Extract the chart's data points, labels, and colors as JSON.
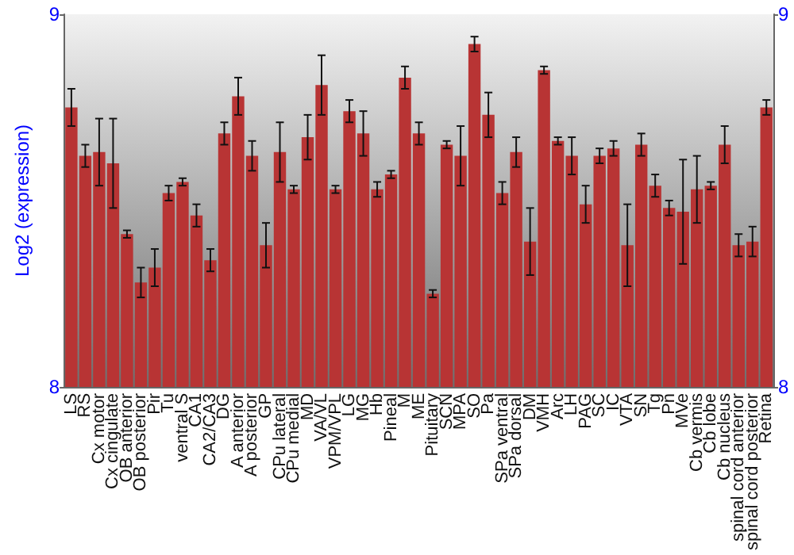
{
  "chart_data": {
    "type": "bar",
    "ylabel": "Log2 (expression)",
    "categories": [
      "LS",
      "RS",
      "Cx motor",
      "Cx cingulate",
      "OB anterior",
      "OB posterior",
      "Pir",
      "Tu",
      "ventral S",
      "CA1",
      "CA2/CA3",
      "DG",
      "A anterior",
      "A posterior",
      "GP",
      "CPu lateral",
      "CPu medial",
      "MD",
      "VA/VL",
      "VPM/VPL",
      "LG",
      "MG",
      "Hb",
      "Pineal",
      "M",
      "ME",
      "Pituitary",
      "SCN",
      "MPA",
      "SO",
      "Pa",
      "SPa ventral",
      "SPa dorsal",
      "DM",
      "VMH",
      "Arc",
      "LH",
      "PAG",
      "SC",
      "IC",
      "VTA",
      "SN",
      "Tg",
      "Pn",
      "MVe",
      "Cb vermis",
      "Cb lobe",
      "Cb nucleus",
      "spinal cord anterior",
      "spinal cord posterior",
      "Retina"
    ],
    "series": [
      {
        "color": "#b83434",
        "values": [
          8.75,
          8.62,
          8.63,
          8.6,
          8.41,
          8.28,
          8.32,
          8.52,
          8.55,
          8.46,
          8.34,
          8.68,
          8.78,
          8.62,
          8.38,
          8.63,
          8.53,
          8.67,
          8.81,
          8.53,
          8.74,
          8.68,
          8.53,
          8.57,
          8.83,
          8.68,
          8.25,
          8.65,
          8.62,
          8.92,
          8.73,
          8.52,
          8.63,
          8.39,
          8.85,
          8.66,
          8.62,
          8.49,
          8.62,
          8.64,
          8.38,
          8.65,
          8.54,
          8.48,
          8.47,
          8.53,
          8.54,
          8.65,
          8.38,
          8.39,
          8.75
        ],
        "errors": [
          0.05,
          0.03,
          0.09,
          0.12,
          0.01,
          0.04,
          0.05,
          0.02,
          0.01,
          0.03,
          0.03,
          0.03,
          0.05,
          0.04,
          0.06,
          0.08,
          0.01,
          0.06,
          0.08,
          0.01,
          0.03,
          0.06,
          0.02,
          0.01,
          0.03,
          0.03,
          0.01,
          0.01,
          0.08,
          0.02,
          0.06,
          0.03,
          0.04,
          0.09,
          0.01,
          0.01,
          0.05,
          0.05,
          0.02,
          0.02,
          0.11,
          0.03,
          0.03,
          0.02,
          0.14,
          0.09,
          0.01,
          0.05,
          0.03,
          0.04,
          0.02
        ]
      }
    ],
    "ylim": [
      8,
      9
    ],
    "yticks": [
      8,
      9
    ],
    "y2lim": [
      8,
      9
    ],
    "y2ticks": [
      8,
      9
    ]
  }
}
